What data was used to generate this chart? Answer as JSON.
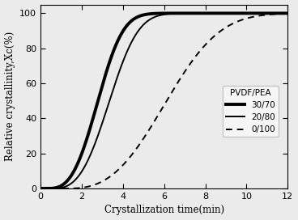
{
  "title": "",
  "xlabel": "Crystallization time(min)",
  "ylabel": "Relative crystallinity,Xc(%)",
  "xlim": [
    0,
    12
  ],
  "ylim": [
    0,
    105
  ],
  "yticks": [
    0,
    20,
    40,
    60,
    80,
    100
  ],
  "xticks": [
    0,
    2,
    4,
    6,
    8,
    10,
    12
  ],
  "legend_title": "PVDF/PEA",
  "series": [
    {
      "label": "30/70",
      "color": "#000000",
      "linewidth": 2.8,
      "linestyle": "solid",
      "k": 0.045,
      "n": 3.0,
      "shift": 0.3
    },
    {
      "label": "20/80",
      "color": "#000000",
      "linewidth": 1.4,
      "linestyle": "solid",
      "k": 0.03,
      "n": 3.0,
      "shift": 0.5
    },
    {
      "label": "0/100",
      "color": "#000000",
      "linewidth": 1.4,
      "linestyle": "dashed",
      "k": 0.008,
      "n": 2.8,
      "shift": 1.2
    }
  ],
  "background_color": "#ebebeb",
  "legend_fontsize": 7.5,
  "axis_fontsize": 8.5,
  "tick_fontsize": 8
}
